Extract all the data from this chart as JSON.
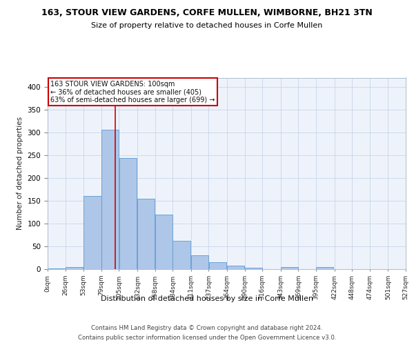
{
  "title1": "163, STOUR VIEW GARDENS, CORFE MULLEN, WIMBORNE, BH21 3TN",
  "title2": "Size of property relative to detached houses in Corfe Mullen",
  "xlabel": "Distribution of detached houses by size in Corfe Mullen",
  "ylabel": "Number of detached properties",
  "bar_color": "#aec6e8",
  "bar_edge_color": "#5b9bd5",
  "grid_color": "#c8d4e8",
  "background_color": "#eef3fb",
  "annotation_box_color": "#ffffff",
  "annotation_box_edge": "#cc0000",
  "vline_color": "#cc0000",
  "vline_x": 100,
  "footnote1": "Contains HM Land Registry data © Crown copyright and database right 2024.",
  "footnote2": "Contains public sector information licensed under the Open Government Licence v3.0.",
  "annotation_line1": "163 STOUR VIEW GARDENS: 100sqm",
  "annotation_line2": "← 36% of detached houses are smaller (405)",
  "annotation_line3": "63% of semi-detached houses are larger (699) →",
  "bins": [
    0,
    26,
    53,
    79,
    105,
    132,
    158,
    184,
    211,
    237,
    264,
    290,
    316,
    343,
    369,
    395,
    422,
    448,
    474,
    501,
    527
  ],
  "counts": [
    2,
    5,
    160,
    306,
    243,
    154,
    119,
    62,
    31,
    15,
    8,
    3,
    0,
    4,
    0,
    4,
    0,
    0,
    0,
    0
  ],
  "ylim": [
    0,
    420
  ],
  "xlim": [
    0,
    527
  ]
}
